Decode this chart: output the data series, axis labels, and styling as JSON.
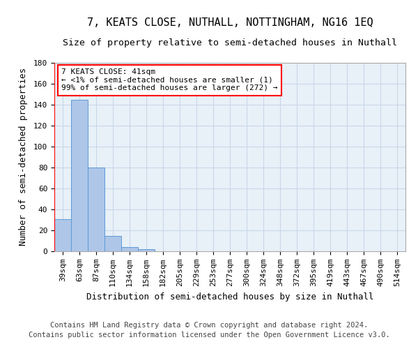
{
  "title": "7, KEATS CLOSE, NUTHALL, NOTTINGHAM, NG16 1EQ",
  "subtitle": "Size of property relative to semi-detached houses in Nuthall",
  "xlabel": "Distribution of semi-detached houses by size in Nuthall",
  "ylabel": "Number of semi-detached properties",
  "footer": "Contains HM Land Registry data © Crown copyright and database right 2024.\nContains public sector information licensed under the Open Government Licence v3.0.",
  "categories": [
    "39sqm",
    "63sqm",
    "87sqm",
    "110sqm",
    "134sqm",
    "158sqm",
    "182sqm",
    "205sqm",
    "229sqm",
    "253sqm",
    "277sqm",
    "300sqm",
    "324sqm",
    "348sqm",
    "372sqm",
    "395sqm",
    "419sqm",
    "443sqm",
    "467sqm",
    "490sqm",
    "514sqm"
  ],
  "values": [
    31,
    145,
    80,
    15,
    4,
    2,
    0,
    0,
    0,
    0,
    0,
    0,
    0,
    0,
    0,
    0,
    0,
    0,
    0,
    0,
    0
  ],
  "bar_color": "#aec6e8",
  "bar_edge_color": "#5b9bd5",
  "highlight_color": "#ff0000",
  "annotation_text": "7 KEATS CLOSE: 41sqm\n← <1% of semi-detached houses are smaller (1)\n99% of semi-detached houses are larger (272) →",
  "annotation_box_color": "#ffffff",
  "annotation_box_edge_color": "#ff0000",
  "ylim": [
    0,
    180
  ],
  "yticks": [
    0,
    20,
    40,
    60,
    80,
    100,
    120,
    140,
    160,
    180
  ],
  "grid_color": "#c8d8e8",
  "background_color": "#e8f0f8",
  "title_fontsize": 11,
  "subtitle_fontsize": 9.5,
  "axis_label_fontsize": 9,
  "tick_fontsize": 8,
  "annotation_fontsize": 8,
  "footer_fontsize": 7.5
}
